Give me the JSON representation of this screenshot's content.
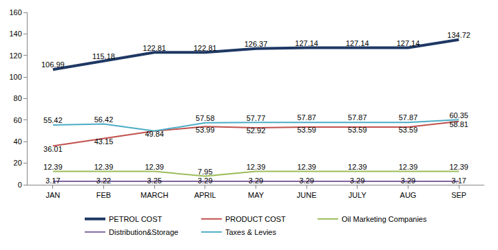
{
  "chart_data": {
    "type": "line",
    "categories": [
      "JAN",
      "FEB",
      "MARCH",
      "APRIL",
      "MAY",
      "JUNE",
      "JULY",
      "AUG",
      "SEP"
    ],
    "series": [
      {
        "name": "PETROL COST",
        "color": "#1F3864",
        "values": [
          106.99,
          115.18,
          122.81,
          122.81,
          126.37,
          127.14,
          127.14,
          127.14,
          134.72
        ]
      },
      {
        "name": "PRODUCT COST",
        "color": "#C0504D",
        "values": [
          36.01,
          43.15,
          49.84,
          53.99,
          52.92,
          53.59,
          53.59,
          53.59,
          58.81
        ]
      },
      {
        "name": "Oil Marketing Companies",
        "color": "#9BBB59",
        "values": [
          12.39,
          12.39,
          12.39,
          7.95,
          12.39,
          12.39,
          12.39,
          12.39,
          12.39
        ]
      },
      {
        "name": "Distribution&Storage",
        "color": "#8064A2",
        "values": [
          3.17,
          3.22,
          3.25,
          3.29,
          3.29,
          3.29,
          3.29,
          3.29,
          3.17
        ]
      },
      {
        "name": "Taxes & Levies",
        "color": "#4BACC6",
        "values": [
          55.42,
          56.42,
          49.84,
          57.58,
          57.77,
          57.87,
          57.87,
          57.87,
          60.35
        ],
        "value_labels": [
          "55.42",
          "56.42",
          null,
          "57.58",
          "57.77",
          "57.87",
          "57.87",
          "57.87",
          "60.35"
        ]
      }
    ],
    "ylim": [
      0,
      160
    ],
    "yticks": [
      0,
      20,
      40,
      60,
      80,
      100,
      120,
      140,
      160
    ],
    "grid": false,
    "legend": "bottom",
    "data_labels": true
  }
}
